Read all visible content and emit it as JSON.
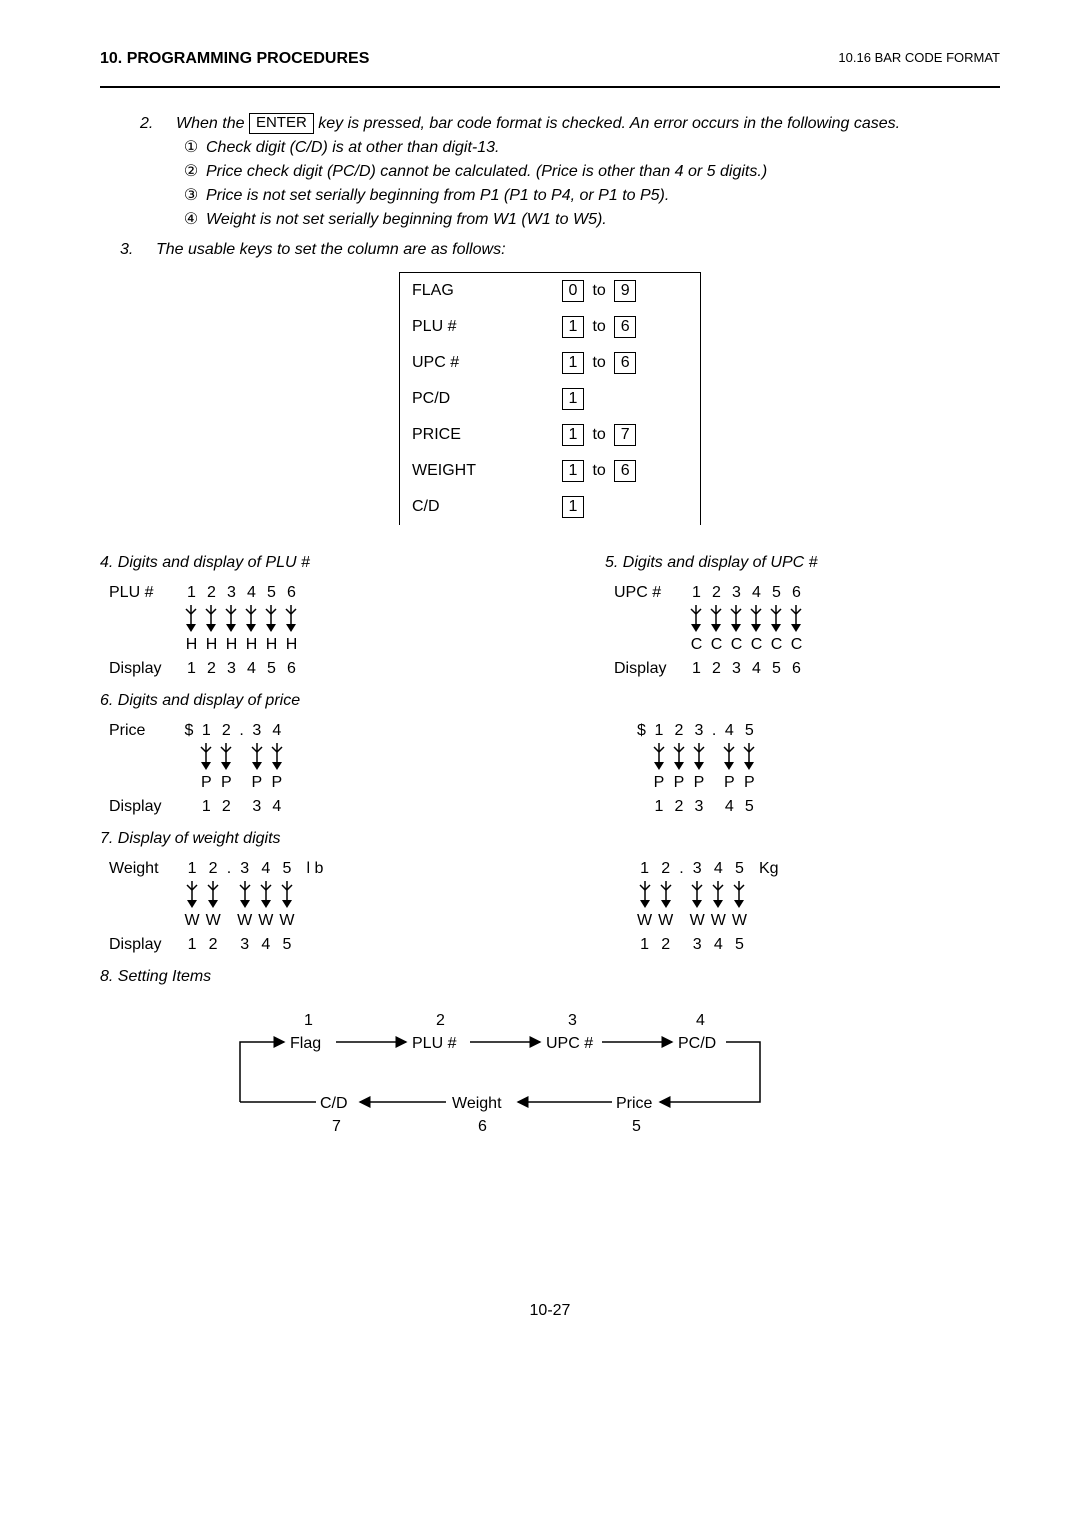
{
  "header": {
    "left": "10. PROGRAMMING PROCEDURES",
    "right": "10.16 BAR CODE FORMAT"
  },
  "intro": {
    "num": "2.",
    "lead_a": "When the",
    "enter_key": "ENTER",
    "lead_b": " key is pressed, bar code format is checked.   An error occurs in the following cases.",
    "items": [
      "Check digit (C/D) is at other than digit-13.",
      "Price check digit (PC/D) cannot be calculated.  (Price is other than 4 or 5 digits.)",
      "Price is not set serially beginning from P1 (P1 to P4, or P1 to P5).",
      "Weight is not set serially beginning from W1 (W1 to W5)."
    ],
    "circles": [
      "①",
      "②",
      "③",
      "④"
    ]
  },
  "item3": {
    "num": "3.",
    "text": "The usable keys to set the column are as follows:"
  },
  "key_ranges": [
    {
      "label": "FLAG",
      "from": "0",
      "to": "9"
    },
    {
      "label": "PLU #",
      "from": "1",
      "to": "6"
    },
    {
      "label": "UPC #",
      "from": "1",
      "to": "6"
    },
    {
      "label": "PC/D",
      "from": "1",
      "to": null
    },
    {
      "label": "PRICE",
      "from": "1",
      "to": "7"
    },
    {
      "label": "WEIGHT",
      "from": "1",
      "to": "6"
    },
    {
      "label": "C/D",
      "from": "1",
      "to": null
    }
  ],
  "sec4": {
    "title": "4.  Digits and display of PLU #",
    "row_top_label": "PLU #",
    "row_top": [
      "1",
      "2",
      "3",
      "4",
      "5",
      "6"
    ],
    "row_mid": [
      "H",
      "H",
      "H",
      "H",
      "H",
      "H"
    ],
    "row_bot_label": "Display",
    "row_bot": [
      "1",
      "2",
      "3",
      "4",
      "5",
      "6"
    ]
  },
  "sec5": {
    "title": "5.  Digits and display of UPC #",
    "row_top_label": "UPC #",
    "row_top": [
      "1",
      "2",
      "3",
      "4",
      "5",
      "6"
    ],
    "row_mid": [
      "C",
      "C",
      "C",
      "C",
      "C",
      "C"
    ],
    "row_bot_label": "Display",
    "row_bot": [
      "1",
      "2",
      "3",
      "4",
      "5",
      "6"
    ]
  },
  "sec6": {
    "title": "6.  Digits and display of price",
    "left": {
      "row_top_label": "Price",
      "row_top": [
        "$",
        "1",
        "2",
        ".",
        "3",
        "4"
      ],
      "row_mid": [
        "",
        "P",
        "P",
        "",
        "P",
        "P"
      ],
      "row_bot_label": "Display",
      "row_bot": [
        "",
        "1",
        "2",
        "",
        "3",
        "4"
      ]
    },
    "right": {
      "row_top": [
        "$",
        "1",
        "2",
        "3",
        ".",
        "4",
        "5"
      ],
      "row_mid": [
        "",
        "P",
        "P",
        "P",
        "",
        "P",
        "P"
      ],
      "row_bot": [
        "",
        "1",
        "2",
        "3",
        "",
        "4",
        "5"
      ]
    }
  },
  "sec7": {
    "title": "7.  Display of weight digits",
    "left": {
      "row_top_label": "Weight",
      "row_top": [
        "1",
        "2",
        ".",
        "3",
        "4",
        "5",
        "",
        "l b"
      ],
      "row_mid": [
        "W",
        "W",
        "",
        "W",
        "W",
        "W",
        "",
        ""
      ],
      "row_bot_label": "Display",
      "row_bot": [
        "1",
        "2",
        "",
        "3",
        "4",
        "5",
        "",
        ""
      ]
    },
    "right": {
      "row_top": [
        "1",
        "2",
        ".",
        "3",
        "4",
        "5",
        "",
        "Kg"
      ],
      "row_mid": [
        "W",
        "W",
        "",
        "W",
        "W",
        "W",
        "",
        ""
      ],
      "row_bot": [
        "1",
        "2",
        "",
        "3",
        "4",
        "5",
        "",
        ""
      ]
    }
  },
  "sec8": {
    "title": "8.  Setting Items",
    "top_nums": [
      "1",
      "2",
      "3",
      "4"
    ],
    "top_nodes": [
      "Flag",
      "PLU #",
      "UPC #",
      "PC/D"
    ],
    "bot_nodes": [
      "C/D",
      "Weight",
      "Price"
    ],
    "bot_nums": [
      "7",
      "6",
      "5"
    ]
  },
  "to_word": "to",
  "page_num": "10-27"
}
